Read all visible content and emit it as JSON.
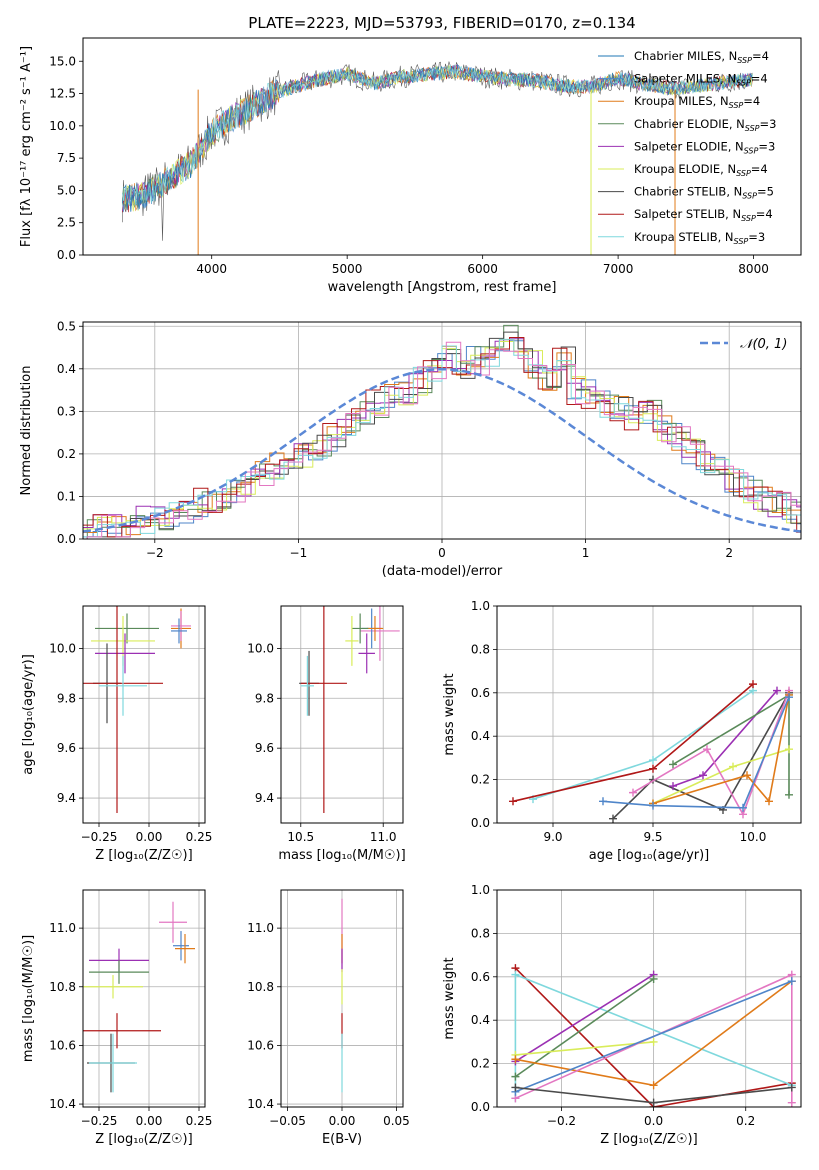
{
  "figure": {
    "title": "PLATE=2223, MJD=53793, FIBERID=0170, z=0.134"
  },
  "colors": {
    "miles_chabrier": "#1f77b4",
    "miles_salpeter": "#4f85c9",
    "miles_kroupa": "#e07b1a",
    "elodie_chabrier": "#5a8a5a",
    "elodie_salpeter": "#9b30b3",
    "elodie_kroupa": "#d9ec5a",
    "stelib_chabrier": "#4a4a4a",
    "stelib_salpeter": "#b01818",
    "stelib_kroupa": "#7fd8dd",
    "pink": "#e377c2",
    "normal_curve": "#5b88d6",
    "grid": "#b0b0b0"
  },
  "chart_data": [
    {
      "id": "spectrum",
      "type": "line",
      "title": "PLATE=2223, MJD=53793, FIBERID=0170, z=0.134",
      "xlabel": "wavelength [Angstrom, rest frame]",
      "ylabel": "Flux [f_λ 10^-17 erg cm^-2 s^-1 A^-1]",
      "xlim": [
        3050,
        8350
      ],
      "ylim": [
        0,
        16.8
      ],
      "xticks": [
        4000,
        5000,
        6000,
        7000,
        8000
      ],
      "yticks": [
        0.0,
        2.5,
        5.0,
        7.5,
        10.0,
        12.5,
        15.0
      ],
      "grid": false,
      "legend_position": "right",
      "continuum": {
        "x": [
          3340,
          3500,
          3700,
          3850,
          4000,
          4150,
          4300,
          4450,
          4600,
          4800,
          5000,
          5200,
          5400,
          5600,
          5800,
          6000,
          6200,
          6400,
          6600,
          6800,
          7000,
          7200,
          7400,
          7600,
          7800,
          8000
        ],
        "y": [
          4.3,
          4.6,
          6.0,
          7.1,
          9.5,
          10.6,
          11.5,
          12.4,
          13.0,
          13.6,
          14.0,
          13.3,
          13.8,
          14.0,
          14.2,
          13.8,
          13.6,
          13.5,
          13.1,
          13.0,
          13.7,
          13.2,
          12.9,
          13.1,
          13.4,
          13.6
        ]
      },
      "series": [
        {
          "name": "Chabrier MILES, N_SSP=4",
          "color": "#1f77b4"
        },
        {
          "name": "Salpeter MILES, N_SSP=4",
          "color": "#4f85c9"
        },
        {
          "name": "Kroupa MILES, N_SSP=4",
          "color": "#e07b1a"
        },
        {
          "name": "Chabrier ELODIE, N_SSP=3",
          "color": "#5a8a5a"
        },
        {
          "name": "Salpeter ELODIE, N_SSP=3",
          "color": "#9b30b3"
        },
        {
          "name": "Kroupa ELODIE, N_SSP=4",
          "color": "#d9ec5a"
        },
        {
          "name": "Chabrier STELIB, N_SSP=5",
          "color": "#4a4a4a"
        },
        {
          "name": "Salpeter STELIB, N_SSP=4",
          "color": "#b01818"
        },
        {
          "name": "Kroupa STELIB, N_SSP=3",
          "color": "#7fd8dd"
        }
      ]
    },
    {
      "id": "residuals",
      "type": "bar",
      "xlabel": "(data-model)/error",
      "ylabel": "Normed distribution",
      "xlim": [
        -2.5,
        2.5
      ],
      "ylim": [
        0,
        0.51
      ],
      "xticks": [
        -2,
        -1,
        0,
        1,
        2
      ],
      "yticks": [
        0.0,
        0.1,
        0.2,
        0.3,
        0.4,
        0.5
      ],
      "grid": true,
      "legend_position": "top-right",
      "bin_width": 0.1,
      "curve_label": "𝒩(0, 1)",
      "base_histogram": [
        0.02,
        0.025,
        0.03,
        0.04,
        0.045,
        0.05,
        0.055,
        0.07,
        0.085,
        0.09,
        0.11,
        0.13,
        0.15,
        0.17,
        0.19,
        0.2,
        0.22,
        0.24,
        0.27,
        0.3,
        0.32,
        0.34,
        0.35,
        0.37,
        0.4,
        0.43,
        0.41,
        0.42,
        0.44,
        0.47,
        0.45,
        0.41,
        0.38,
        0.43,
        0.35,
        0.34,
        0.32,
        0.3,
        0.28,
        0.3,
        0.26,
        0.24,
        0.2,
        0.18,
        0.16,
        0.13,
        0.12,
        0.1,
        0.08,
        0.06,
        0.05
      ]
    },
    {
      "id": "age_vs_Z",
      "type": "scatter",
      "xlabel": "Z [log10(Z/Z☉)]",
      "ylabel": "age  [log10(age/yr)]",
      "xlim": [
        -0.33,
        0.28
      ],
      "ylim": [
        9.3,
        10.17
      ],
      "xticks": [
        -0.25,
        0.0,
        0.25
      ],
      "yticks": [
        9.4,
        9.6,
        9.8,
        10.0
      ],
      "grid": true,
      "points": [
        {
          "x": 0.16,
          "y": 10.08,
          "xerr": 0.05,
          "yerr": 0.08,
          "color": "#e07b1a"
        },
        {
          "x": 0.16,
          "y": 10.09,
          "xerr": 0.05,
          "yerr": 0.06,
          "color": "#e377c2"
        },
        {
          "x": 0.15,
          "y": 10.07,
          "xerr": 0.04,
          "yerr": 0.05,
          "color": "#4f85c9"
        },
        {
          "x": -0.11,
          "y": 10.08,
          "xerr": 0.16,
          "yerr": 0.06,
          "color": "#5a8a5a"
        },
        {
          "x": -0.13,
          "y": 10.03,
          "xerr": 0.16,
          "yerr": 0.1,
          "color": "#d9ec5a"
        },
        {
          "x": -0.12,
          "y": 9.98,
          "xerr": 0.15,
          "yerr": 0.08,
          "color": "#9b30b3"
        },
        {
          "x": -0.21,
          "y": 9.86,
          "xerr": 0.07,
          "yerr": 0.16,
          "color": "#4a4a4a"
        },
        {
          "x": -0.16,
          "y": 9.86,
          "xerr": 0.23,
          "yerr": 0.52,
          "color": "#b01818"
        },
        {
          "x": -0.13,
          "y": 9.85,
          "xerr": 0.12,
          "yerr": 0.12,
          "color": "#7fd8dd"
        }
      ]
    },
    {
      "id": "age_vs_mass",
      "type": "scatter",
      "xlabel": "mass [log10(M/M☉)]",
      "ylabel": "",
      "xlim": [
        10.38,
        11.12
      ],
      "ylim": [
        9.3,
        10.17
      ],
      "xticks": [
        10.5,
        11.0
      ],
      "yticks": [
        9.4,
        9.6,
        9.8,
        10.0
      ],
      "grid": true,
      "points": [
        {
          "x": 10.98,
          "y": 10.07,
          "xerr": 0.12,
          "yerr": 0.12,
          "color": "#e377c2"
        },
        {
          "x": 10.93,
          "y": 10.08,
          "xerr": 0.06,
          "yerr": 0.08,
          "color": "#4f85c9"
        },
        {
          "x": 10.95,
          "y": 10.08,
          "xerr": 0.05,
          "yerr": 0.05,
          "color": "#e07b1a"
        },
        {
          "x": 10.86,
          "y": 10.08,
          "xerr": 0.05,
          "yerr": 0.06,
          "color": "#5a8a5a"
        },
        {
          "x": 10.81,
          "y": 10.03,
          "xerr": 0.04,
          "yerr": 0.1,
          "color": "#d9ec5a"
        },
        {
          "x": 10.9,
          "y": 9.98,
          "xerr": 0.05,
          "yerr": 0.08,
          "color": "#9b30b3"
        },
        {
          "x": 10.55,
          "y": 9.86,
          "xerr": 0.06,
          "yerr": 0.13,
          "color": "#4a4a4a"
        },
        {
          "x": 10.64,
          "y": 9.86,
          "xerr": 0.14,
          "yerr": 0.52,
          "color": "#b01818"
        },
        {
          "x": 10.54,
          "y": 9.85,
          "xerr": 0.04,
          "yerr": 0.12,
          "color": "#7fd8dd"
        }
      ]
    },
    {
      "id": "weight_vs_age",
      "type": "line",
      "xlabel": "age  [log10(age/yr)]",
      "ylabel": "mass weight",
      "xlim": [
        8.72,
        10.24
      ],
      "ylim": [
        0,
        1
      ],
      "xticks": [
        9.0,
        9.5,
        10.0
      ],
      "yticks": [
        0.0,
        0.2,
        0.4,
        0.6,
        0.8,
        1.0
      ],
      "grid": true,
      "series": [
        {
          "color": "#7fd8dd",
          "x": [
            8.9,
            9.5,
            10.0
          ],
          "y": [
            0.11,
            0.29,
            0.61
          ]
        },
        {
          "color": "#b01818",
          "x": [
            8.8,
            9.5,
            10.0
          ],
          "y": [
            0.1,
            0.25,
            0.64
          ]
        },
        {
          "color": "#4a4a4a",
          "x": [
            9.3,
            9.5,
            9.85,
            10.18
          ],
          "y": [
            0.02,
            0.2,
            0.06,
            0.6
          ]
        },
        {
          "color": "#9b30b3",
          "x": [
            9.6,
            9.75,
            10.12
          ],
          "y": [
            0.17,
            0.22,
            0.61
          ]
        },
        {
          "color": "#5a8a5a",
          "x": [
            9.6,
            10.18,
            10.18
          ],
          "y": [
            0.27,
            0.59,
            0.13
          ]
        },
        {
          "color": "#d9ec5a",
          "x": [
            9.5,
            9.9,
            10.18
          ],
          "y": [
            0.09,
            0.26,
            0.34
          ]
        },
        {
          "color": "#e377c2",
          "x": [
            9.4,
            9.77,
            9.95,
            10.18
          ],
          "y": [
            0.14,
            0.34,
            0.04,
            0.61
          ]
        },
        {
          "color": "#e07b1a",
          "x": [
            9.5,
            9.97,
            10.08,
            10.18
          ],
          "y": [
            0.09,
            0.22,
            0.1,
            0.59
          ]
        },
        {
          "color": "#4f85c9",
          "x": [
            9.25,
            9.5,
            9.95,
            10.18
          ],
          "y": [
            0.1,
            0.08,
            0.07,
            0.58
          ]
        }
      ]
    },
    {
      "id": "mass_vs_Z",
      "type": "scatter",
      "xlabel": "Z [log10(Z/Z☉)]",
      "ylabel": "mass [log10(M/M☉)]",
      "xlim": [
        -0.33,
        0.28
      ],
      "ylim": [
        10.39,
        11.13
      ],
      "xticks": [
        -0.25,
        0.0,
        0.25
      ],
      "yticks": [
        10.4,
        10.6,
        10.8,
        11.0
      ],
      "grid": true,
      "points": [
        {
          "x": 0.12,
          "y": 11.02,
          "xerr": 0.07,
          "yerr": 0.07,
          "color": "#e377c2"
        },
        {
          "x": 0.16,
          "y": 10.94,
          "xerr": 0.04,
          "yerr": 0.05,
          "color": "#4f85c9"
        },
        {
          "x": 0.18,
          "y": 10.93,
          "xerr": 0.05,
          "yerr": 0.05,
          "color": "#e07b1a"
        },
        {
          "x": -0.15,
          "y": 10.89,
          "xerr": 0.15,
          "yerr": 0.04,
          "color": "#9b30b3"
        },
        {
          "x": -0.15,
          "y": 10.85,
          "xerr": 0.15,
          "yerr": 0.04,
          "color": "#5a8a5a"
        },
        {
          "x": -0.18,
          "y": 10.8,
          "xerr": 0.15,
          "yerr": 0.04,
          "color": "#d9ec5a"
        },
        {
          "x": -0.16,
          "y": 10.65,
          "xerr": 0.22,
          "yerr": 0.06,
          "color": "#b01818"
        },
        {
          "x": -0.19,
          "y": 10.54,
          "xerr": 0.12,
          "yerr": 0.1,
          "color": "#4a4a4a"
        },
        {
          "x": -0.18,
          "y": 10.54,
          "xerr": 0.12,
          "yerr": 0.1,
          "color": "#7fd8dd"
        }
      ]
    },
    {
      "id": "mass_vs_ebv",
      "type": "scatter",
      "xlabel": "E(B-V)",
      "ylabel": "",
      "xlim": [
        -0.056,
        0.056
      ],
      "ylim": [
        10.39,
        11.13
      ],
      "xticks": [
        -0.05,
        0.0,
        0.05
      ],
      "yticks": [
        10.4,
        10.6,
        10.8,
        11.0
      ],
      "grid": true,
      "points": [
        {
          "x": 0.0,
          "y": 10.98,
          "xerr": 0,
          "yerr": 0.12,
          "color": "#e377c2"
        },
        {
          "x": 0.0,
          "y": 10.93,
          "xerr": 0,
          "yerr": 0.05,
          "color": "#e07b1a"
        },
        {
          "x": 0.0,
          "y": 10.89,
          "xerr": 0,
          "yerr": 0.04,
          "color": "#9b30b3"
        },
        {
          "x": 0.0,
          "y": 10.8,
          "xerr": 0,
          "yerr": 0.06,
          "color": "#d9ec5a"
        },
        {
          "x": 0.0,
          "y": 10.65,
          "xerr": 0,
          "yerr": 0.06,
          "color": "#b01818"
        },
        {
          "x": 0.0,
          "y": 10.54,
          "xerr": 0,
          "yerr": 0.1,
          "color": "#7fd8dd"
        }
      ]
    },
    {
      "id": "weight_vs_Z",
      "type": "line",
      "xlabel": "Z [log10(Z/Z☉)]",
      "ylabel": "mass weight",
      "xlim": [
        -0.34,
        0.32
      ],
      "ylim": [
        0,
        1
      ],
      "xticks": [
        -0.2,
        0.0,
        0.2
      ],
      "yticks": [
        0.0,
        0.2,
        0.4,
        0.6,
        0.8,
        1.0
      ],
      "grid": true,
      "series": [
        {
          "color": "#b01818",
          "x": [
            -0.3,
            0.0,
            0.3
          ],
          "y": [
            0.64,
            0.0,
            0.11
          ]
        },
        {
          "color": "#7fd8dd",
          "x": [
            -0.3,
            -0.3,
            0.3
          ],
          "y": [
            0.04,
            0.61,
            0.1
          ]
        },
        {
          "color": "#9b30b3",
          "x": [
            -0.3,
            0.0
          ],
          "y": [
            0.21,
            0.61
          ]
        },
        {
          "color": "#5a8a5a",
          "x": [
            -0.3,
            0.0
          ],
          "y": [
            0.14,
            0.59
          ]
        },
        {
          "color": "#d9ec5a",
          "x": [
            -0.3,
            0.0
          ],
          "y": [
            0.24,
            0.3
          ]
        },
        {
          "color": "#e07b1a",
          "x": [
            -0.3,
            0.0,
            0.3
          ],
          "y": [
            0.22,
            0.1,
            0.58
          ]
        },
        {
          "color": "#e377c2",
          "x": [
            -0.3,
            0.3,
            0.3
          ],
          "y": [
            0.04,
            0.61,
            0.02
          ]
        },
        {
          "color": "#4f85c9",
          "x": [
            -0.3,
            0.3
          ],
          "y": [
            0.07,
            0.58
          ]
        },
        {
          "color": "#4a4a4a",
          "x": [
            -0.3,
            0.0,
            0.3
          ],
          "y": [
            0.09,
            0.02,
            0.09
          ]
        }
      ]
    }
  ]
}
